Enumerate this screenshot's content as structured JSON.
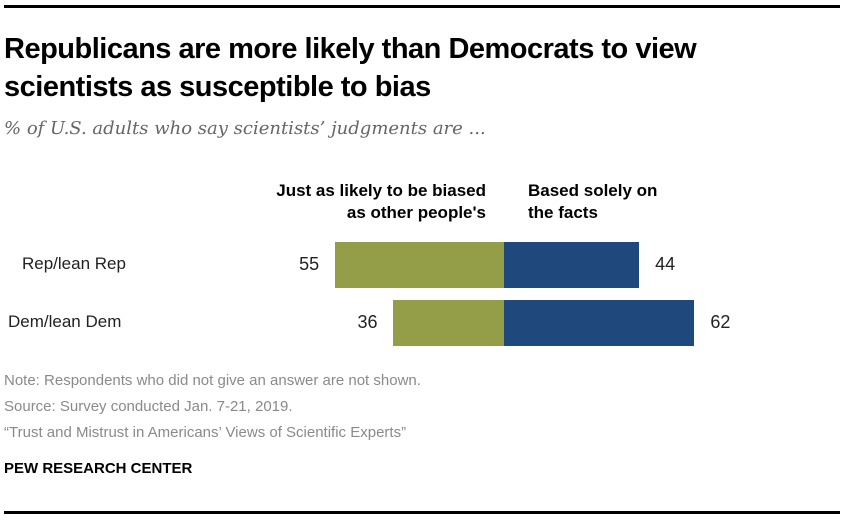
{
  "chart_data": {
    "type": "bar",
    "orientation": "horizontal-diverging",
    "title": "Republicans are more likely than Democrats to view scientists as susceptible to bias",
    "subtitle": "% of U.S. adults who say scientists’ judgments are ...",
    "categories": [
      "Rep/lean Rep",
      "Dem/lean Dem"
    ],
    "series": [
      {
        "name": "Just as likely to be biased as other people's",
        "header_lines": [
          "Just as likely to be biased",
          "as other people's"
        ],
        "color": "#949d48",
        "values": [
          55,
          36
        ],
        "direction": "left"
      },
      {
        "name": "Based solely on the facts",
        "header_lines": [
          "Based solely on",
          "the facts"
        ],
        "color": "#1f497d",
        "values": [
          44,
          62
        ],
        "direction": "right"
      }
    ],
    "xlabel": "",
    "ylabel": "",
    "grid": false,
    "legend": "column headers above bars"
  },
  "footer": {
    "note": "Note: Respondents who did not give an answer are not shown.",
    "source": "Source: Survey conducted Jan. 7-21, 2019.",
    "report": "“Trust and Mistrust in Americans’ Views of Scientific Experts”",
    "brand": "PEW RESEARCH CENTER"
  }
}
